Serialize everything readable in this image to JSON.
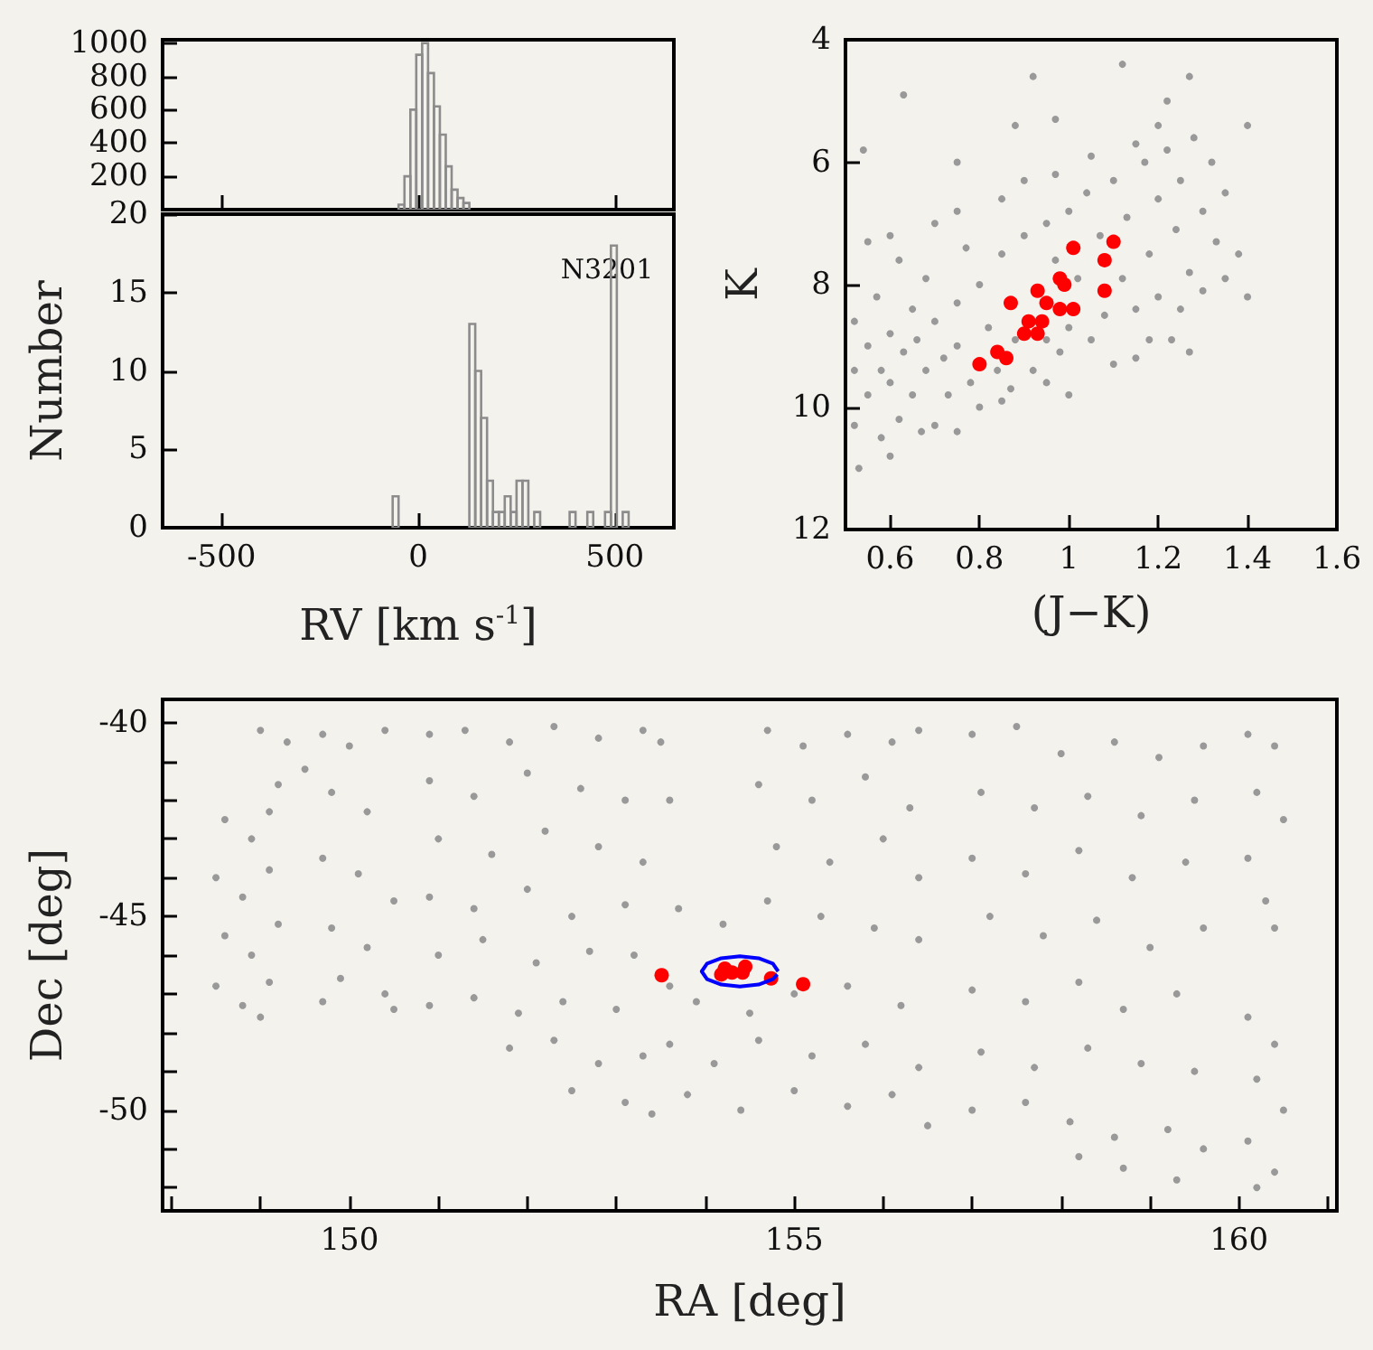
{
  "chart_data": [
    {
      "type": "histogram",
      "color": "#8c8c8c",
      "bins": [
        -65,
        -50,
        -35,
        -20,
        -5,
        10,
        25,
        40,
        55,
        70,
        85,
        100,
        115,
        130,
        145,
        160,
        175,
        190,
        205,
        220,
        235,
        250,
        265,
        280,
        295,
        310,
        325,
        340,
        355,
        370,
        385,
        400,
        415,
        430,
        445,
        460,
        475,
        490,
        505,
        520,
        535,
        550
      ],
      "values": [
        null,
        30,
        200,
        600,
        930,
        1000,
        820,
        620,
        450,
        260,
        120,
        70,
        40,
        null,
        null,
        null,
        null,
        null,
        null,
        null,
        null,
        null,
        null,
        null,
        null,
        null,
        null,
        null,
        null,
        null,
        null,
        null,
        null,
        null,
        null,
        null,
        null,
        null,
        null,
        null,
        null
      ],
      "xlim": [
        -650,
        650
      ],
      "xticks": [
        -500,
        0,
        500
      ],
      "ylim": [
        0,
        1020
      ],
      "yticks": [
        200,
        400,
        600,
        800,
        1000
      ],
      "tick_labels": "y"
    },
    {
      "type": "histogram",
      "color": "#8c8c8c",
      "bins": [
        -65,
        -50,
        -35,
        -20,
        -5,
        10,
        25,
        40,
        55,
        70,
        85,
        100,
        115,
        130,
        145,
        160,
        175,
        190,
        205,
        220,
        235,
        250,
        265,
        280,
        295,
        310,
        325,
        340,
        355,
        370,
        385,
        400,
        415,
        430,
        445,
        460,
        475,
        490,
        505,
        520,
        535,
        550
      ],
      "values": [
        2,
        null,
        null,
        null,
        null,
        null,
        null,
        null,
        null,
        null,
        null,
        null,
        null,
        13,
        10,
        7,
        3,
        1,
        1,
        2,
        1,
        3,
        3,
        0,
        1,
        0,
        0,
        0,
        0,
        0,
        1,
        0,
        0,
        1,
        0,
        0,
        1,
        18,
        0,
        1,
        0
      ],
      "xlim": [
        -650,
        650
      ],
      "xticks": [
        -500,
        0,
        500
      ],
      "ylim": [
        0,
        20
      ],
      "yticks": [
        0,
        5,
        10,
        15,
        20
      ],
      "xlabel": "RV [km s$^{-1}$]",
      "ylabel": "Number",
      "annotations": [
        {
          "text": "N3201",
          "x": 480,
          "y": 16.5
        }
      ]
    },
    {
      "type": "scatter",
      "marker": "circle",
      "xlabel": "(J−K)",
      "ylabel": "K",
      "xlim": [
        0.5,
        1.6
      ],
      "xticks": [
        0.6,
        0.8,
        1,
        1.2,
        1.4,
        1.6
      ],
      "ylim": [
        12,
        4
      ],
      "yticks": [
        4,
        6,
        8,
        10,
        12
      ],
      "series": [
        {
          "color": "#999999",
          "x": [
            0.52,
            0.52,
            0.52,
            0.55,
            0.55,
            0.57,
            0.58,
            0.58,
            0.6,
            0.6,
            0.62,
            0.62,
            0.63,
            0.65,
            0.65,
            0.66,
            0.68,
            0.68,
            0.7,
            0.7,
            0.72,
            0.73,
            0.75,
            0.75,
            0.77,
            0.78,
            0.8,
            0.8,
            0.82,
            0.84,
            0.85,
            0.87,
            0.88,
            0.9,
            0.92,
            0.95,
            0.95,
            0.97,
            0.98,
            1.0,
            1.0,
            1.02,
            1.04,
            1.05,
            1.07,
            1.08,
            1.1,
            1.12,
            1.13,
            1.15,
            1.17,
            1.18,
            1.2,
            1.2,
            1.22,
            1.24,
            1.25,
            1.27,
            1.28,
            1.3,
            1.32,
            1.33,
            1.35,
            1.35,
            0.55,
            0.6,
            0.7,
            0.75,
            0.85,
            0.9,
            0.97,
            1.05,
            1.15,
            1.2,
            0.6,
            0.53,
            0.67,
            0.75,
            0.85,
            0.95,
            1.0,
            1.1,
            1.18,
            1.25,
            1.3,
            0.63,
            0.92,
            0.88,
            0.75,
            0.54,
            1.12,
            1.27,
            1.4,
            1.4,
            1.38,
            1.23,
            1.27,
            1.15,
            0.97,
            1.22
          ],
          "values": [
            8.6,
            9.4,
            10.3,
            9.0,
            9.8,
            8.2,
            9.4,
            10.5,
            8.8,
            9.6,
            7.6,
            10.2,
            9.1,
            8.4,
            9.8,
            8.9,
            9.4,
            7.9,
            8.6,
            10.3,
            9.2,
            9.8,
            8.3,
            9.0,
            7.4,
            9.6,
            8.0,
            10.0,
            8.7,
            9.4,
            7.5,
            9.7,
            8.9,
            7.2,
            9.4,
            7.0,
            8.9,
            7.6,
            9.1,
            6.8,
            8.7,
            7.9,
            6.5,
            8.9,
            7.2,
            8.5,
            6.3,
            7.9,
            6.9,
            8.4,
            6.0,
            7.5,
            6.6,
            8.2,
            5.8,
            7.1,
            6.3,
            7.8,
            5.6,
            6.8,
            6.0,
            7.3,
            6.5,
            7.9,
            7.3,
            7.2,
            7.0,
            6.8,
            6.6,
            6.3,
            6.2,
            5.9,
            5.7,
            5.4,
            10.8,
            11.0,
            10.4,
            10.4,
            9.9,
            9.6,
            9.8,
            9.3,
            8.9,
            8.4,
            8.1,
            4.9,
            4.6,
            5.4,
            6.0,
            5.8,
            4.4,
            4.6,
            5.4,
            8.2,
            7.5,
            8.9,
            9.1,
            9.2,
            5.3,
            5.0
          ]
        },
        {
          "color": "#ff0000",
          "x": [
            0.8,
            0.84,
            0.86,
            0.87,
            0.9,
            0.91,
            0.93,
            0.93,
            0.94,
            0.95,
            0.98,
            0.99,
            0.98,
            1.01,
            1.01,
            1.08,
            1.08,
            1.1
          ],
          "values": [
            9.3,
            9.1,
            9.2,
            8.3,
            8.8,
            8.6,
            8.1,
            8.8,
            8.6,
            8.3,
            7.9,
            8.0,
            8.4,
            8.4,
            7.4,
            7.6,
            8.1,
            7.3
          ]
        }
      ]
    },
    {
      "type": "scatter",
      "marker": "circle",
      "xlabel": "RA [deg]",
      "ylabel": "Dec [deg]",
      "xlim": [
        147.9,
        161.1
      ],
      "xticks": [
        {
          "value": 148,
          "label": null
        },
        {
          "value": 149,
          "label": null
        },
        150,
        {
          "value": 151,
          "label": null
        },
        {
          "value": 152,
          "label": null
        },
        {
          "value": 153,
          "label": null
        },
        {
          "value": 154,
          "label": null
        },
        155,
        {
          "value": 156,
          "label": null
        },
        {
          "value": 157,
          "label": null
        },
        {
          "value": 158,
          "label": null
        },
        {
          "value": 159,
          "label": null
        },
        160,
        {
          "value": 161,
          "label": null
        }
      ],
      "ylim": [
        -52.6,
        -39.4
      ],
      "yticks": [
        -40,
        {
          "value": -41,
          "label": null
        },
        {
          "value": -42,
          "label": null
        },
        {
          "value": -43,
          "label": null
        },
        {
          "value": -44,
          "label": null
        },
        -45,
        {
          "value": -46,
          "label": null
        },
        {
          "value": -47,
          "label": null
        },
        {
          "value": -48,
          "label": null
        },
        {
          "value": -49,
          "label": null
        },
        -50,
        {
          "value": -51,
          "label": null
        },
        {
          "value": -52,
          "label": null
        }
      ],
      "series": [
        {
          "color": "#999999",
          "x": [
            148.6,
            148.9,
            149.1,
            148.5,
            148.8,
            149.1,
            148.6,
            148.9,
            149.2,
            148.5,
            148.8,
            149.1,
            149.0,
            149.0,
            149.3,
            149.5,
            149.2,
            149.7,
            150.0,
            150.4,
            149.8,
            150.2,
            149.7,
            150.1,
            150.5,
            149.8,
            150.2,
            149.9,
            150.4,
            150.5,
            149.7,
            150.9,
            151.3,
            151.8,
            152.3,
            152.8,
            153.3,
            150.9,
            151.4,
            152.0,
            152.6,
            153.1,
            151.0,
            151.6,
            152.2,
            152.8,
            153.3,
            150.9,
            151.4,
            152.0,
            152.5,
            153.1,
            151.0,
            151.5,
            152.1,
            152.7,
            153.2,
            150.9,
            151.4,
            151.9,
            152.4,
            153.0,
            151.8,
            152.3,
            152.8,
            153.3,
            152.5,
            153.1,
            153.4,
            153.5,
            153.6,
            154.7,
            155.1,
            155.6,
            156.1,
            156.4,
            154.6,
            155.2,
            155.8,
            156.3,
            154.8,
            155.4,
            156.0,
            156.4,
            153.7,
            154.2,
            154.7,
            155.3,
            155.9,
            156.4,
            153.6,
            153.9,
            154.5,
            155.0,
            155.6,
            156.2,
            153.6,
            154.1,
            154.6,
            155.2,
            155.8,
            156.4,
            153.8,
            154.4,
            155.0,
            155.6,
            156.1,
            156.5,
            157.0,
            157.5,
            158.0,
            158.6,
            159.1,
            159.6,
            157.1,
            157.7,
            158.3,
            158.9,
            159.5,
            157.0,
            157.6,
            158.2,
            158.8,
            159.4,
            157.2,
            157.8,
            158.4,
            159.0,
            159.6,
            157.0,
            157.6,
            158.2,
            158.7,
            159.3,
            157.1,
            157.7,
            158.3,
            158.9,
            159.5,
            157.0,
            157.6,
            158.1,
            158.6,
            159.2,
            159.6,
            158.7,
            159.3,
            158.2,
            160.1,
            160.4,
            160.2,
            160.5,
            160.1,
            160.3,
            160.4,
            160.1,
            160.4,
            160.2,
            160.5,
            160.1,
            160.4,
            160.2
          ],
          "values": [
            -42.5,
            -43.0,
            -42.3,
            -44.0,
            -44.5,
            -43.8,
            -45.5,
            -46.0,
            -45.2,
            -46.8,
            -47.3,
            -46.7,
            -47.6,
            -40.2,
            -40.5,
            -41.2,
            -41.6,
            -40.3,
            -40.6,
            -40.2,
            -41.8,
            -42.3,
            -43.5,
            -43.9,
            -44.6,
            -45.3,
            -45.8,
            -46.6,
            -47.0,
            -47.4,
            -47.2,
            -40.3,
            -40.2,
            -40.5,
            -40.1,
            -40.4,
            -40.2,
            -41.5,
            -41.9,
            -41.3,
            -41.7,
            -42.0,
            -43.0,
            -43.4,
            -42.8,
            -43.2,
            -43.6,
            -44.5,
            -44.8,
            -44.3,
            -45.0,
            -44.7,
            -46.0,
            -45.6,
            -46.2,
            -45.9,
            -46.0,
            -47.3,
            -47.1,
            -47.5,
            -47.2,
            -47.4,
            -48.4,
            -48.2,
            -48.8,
            -48.6,
            -49.5,
            -49.8,
            -50.1,
            -40.5,
            -42.0,
            -40.2,
            -40.6,
            -40.3,
            -40.5,
            -40.2,
            -41.6,
            -42.0,
            -41.4,
            -42.2,
            -43.2,
            -43.6,
            -43.0,
            -44.0,
            -44.8,
            -45.2,
            -44.6,
            -45.0,
            -45.3,
            -45.6,
            -46.8,
            -47.2,
            -47.5,
            -47.0,
            -46.8,
            -47.3,
            -48.3,
            -48.8,
            -48.2,
            -48.6,
            -48.3,
            -48.9,
            -49.6,
            -50.0,
            -49.5,
            -49.9,
            -49.6,
            -50.4,
            -40.3,
            -40.1,
            -40.8,
            -40.5,
            -40.9,
            -40.6,
            -41.8,
            -42.2,
            -41.9,
            -42.4,
            -42.0,
            -43.5,
            -43.9,
            -43.3,
            -44.0,
            -43.6,
            -45.0,
            -45.5,
            -45.1,
            -45.8,
            -45.3,
            -46.9,
            -47.2,
            -46.7,
            -47.4,
            -47.0,
            -48.5,
            -48.9,
            -48.4,
            -48.8,
            -49.0,
            -50.0,
            -49.8,
            -50.3,
            -50.7,
            -50.5,
            -51.0,
            -51.5,
            -51.8,
            -51.2,
            -40.3,
            -40.6,
            -41.8,
            -42.5,
            -43.5,
            -44.6,
            -45.3,
            -47.6,
            -48.3,
            -49.2,
            -50.0,
            -50.8,
            -51.6,
            -52.0
          ]
        },
        {
          "color": "#ff0000",
          "x": [
            153.51,
            154.18,
            154.22,
            154.3,
            154.38,
            154.45,
            154.42,
            154.74,
            155.1
          ],
          "values": [
            -46.52,
            -46.5,
            -46.35,
            -46.45,
            null,
            -46.3,
            -46.45,
            -46.6,
            -46.75
          ]
        },
        {
          "type": "line",
          "marker": "none",
          "color": "#0000ff",
          "x": [
            154.82,
            154.76,
            154.6,
            154.39,
            154.18,
            154.02,
            153.96,
            154.02,
            154.18,
            154.39,
            154.6,
            154.76,
            154.81
          ],
          "values": [
            -46.42,
            -46.22,
            -46.08,
            -46.03,
            -46.08,
            -46.22,
            -46.42,
            -46.62,
            -46.76,
            -46.81,
            -46.76,
            -46.62,
            -46.5
          ]
        }
      ]
    }
  ]
}
